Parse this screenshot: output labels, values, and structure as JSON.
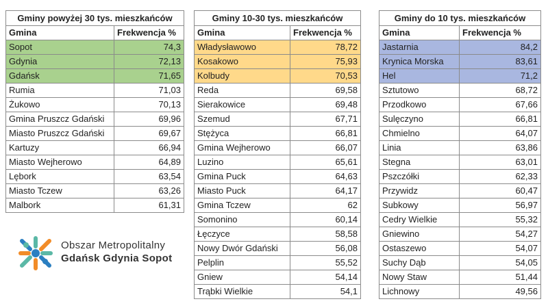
{
  "col_header_name": "Gmina",
  "col_header_value": "Frekwencja %",
  "tables": [
    {
      "title": "Gminy powyżej 30 tys. mieszkańców",
      "highlight": "green",
      "rows": [
        [
          "Sopot",
          "74,3"
        ],
        [
          "Gdynia",
          "72,13"
        ],
        [
          "Gdańsk",
          "71,65"
        ],
        [
          "Rumia",
          "71,03"
        ],
        [
          "Żukowo",
          "70,13"
        ],
        [
          "Gmina Pruszcz Gdański",
          "69,96"
        ],
        [
          "Miasto Pruszcz Gdański",
          "69,67"
        ],
        [
          "Kartuzy",
          "66,94"
        ],
        [
          "Miasto Wejherowo",
          "64,89"
        ],
        [
          "Lębork",
          "63,54"
        ],
        [
          "Miasto Tczew",
          "63,26"
        ],
        [
          "Malbork",
          "61,31"
        ]
      ]
    },
    {
      "title": "Gminy 10-30 tys. mieszkańców",
      "highlight": "yellow",
      "rows": [
        [
          "Władysławowo",
          "78,72"
        ],
        [
          "Kosakowo",
          "75,93"
        ],
        [
          "Kolbudy",
          "70,53"
        ],
        [
          "Reda",
          "69,58"
        ],
        [
          "Sierakowice",
          "69,48"
        ],
        [
          "Szemud",
          "67,71"
        ],
        [
          "Stężyca",
          "66,81"
        ],
        [
          "Gmina Wejherowo",
          "66,07"
        ],
        [
          "Luzino",
          "65,61"
        ],
        [
          "Gmina Puck",
          "64,63"
        ],
        [
          "Miasto Puck",
          "64,17"
        ],
        [
          "Gmina Tczew",
          "62"
        ],
        [
          "Somonino",
          "60,14"
        ],
        [
          "Łęczyce",
          "58,58"
        ],
        [
          "Nowy Dwór Gdański",
          "56,08"
        ],
        [
          "Pelplin",
          "55,52"
        ],
        [
          "Gniew",
          "54,14"
        ],
        [
          "Trąbki Wielkie",
          "54,1"
        ]
      ]
    },
    {
      "title": "Gminy do 10 tys. mieszkańców",
      "highlight": "blue",
      "rows": [
        [
          "Jastarnia",
          "84,2"
        ],
        [
          "Krynica Morska",
          "83,61"
        ],
        [
          "Hel",
          "71,2"
        ],
        [
          "Sztutowo",
          "68,72"
        ],
        [
          "Przodkowo",
          "67,66"
        ],
        [
          "Sulęczyno",
          "66,81"
        ],
        [
          "Chmielno",
          "64,07"
        ],
        [
          "Linia",
          "63,86"
        ],
        [
          "Stegna",
          "63,01"
        ],
        [
          "Pszczółki",
          "62,33"
        ],
        [
          "Przywidz",
          "60,47"
        ],
        [
          "Subkowy",
          "56,97"
        ],
        [
          "Cedry Wielkie",
          "55,32"
        ],
        [
          "Gniewino",
          "54,27"
        ],
        [
          "Ostaszewo",
          "54,07"
        ],
        [
          "Suchy Dąb",
          "54,05"
        ],
        [
          "Nowy Staw",
          "51,44"
        ],
        [
          "Lichnowy",
          "49,56"
        ]
      ]
    }
  ],
  "highlight_colors": {
    "green": "#a9d18e",
    "yellow": "#ffd98a",
    "blue": "#a9b7e0"
  },
  "logo": {
    "line1": "Obszar Metropolitalny",
    "line2": "Gdańsk Gdynia Sopot",
    "icon": "metropolitan-area-logo-icon"
  }
}
